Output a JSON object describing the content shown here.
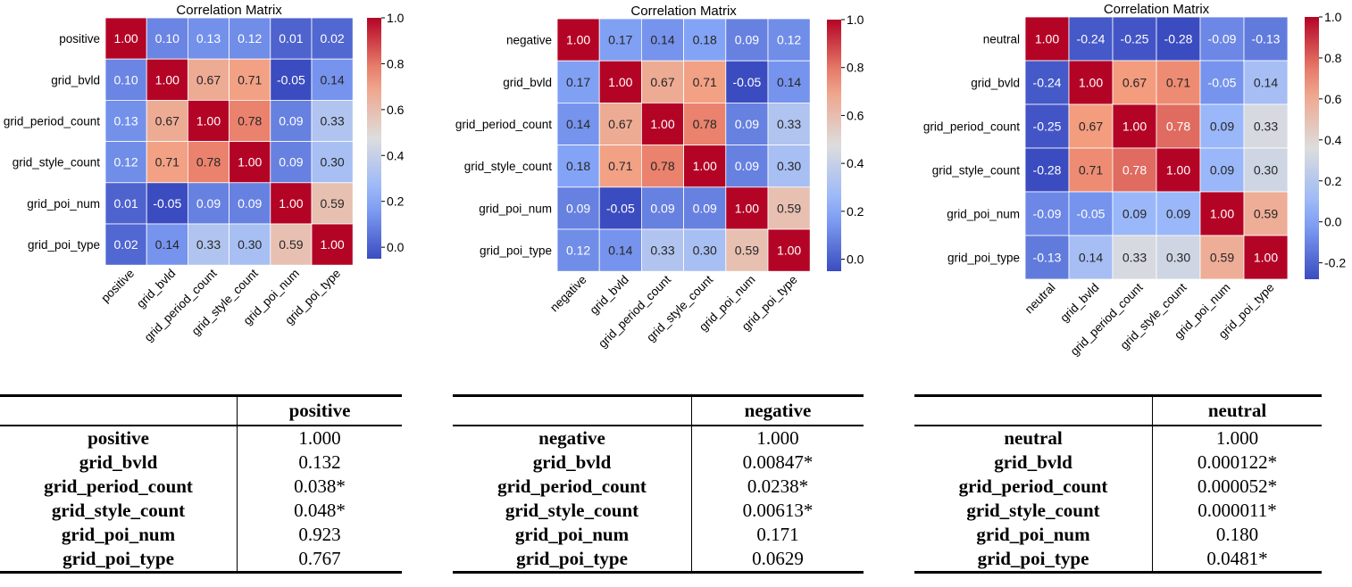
{
  "chart_data": [
    {
      "type": "heatmap",
      "title": "Correlation Matrix",
      "labels": [
        "positive",
        "grid_bvld",
        "grid_period_count",
        "grid_style_count",
        "grid_poi_num",
        "grid_poi_type"
      ],
      "matrix": [
        [
          1.0,
          0.1,
          0.13,
          0.12,
          0.01,
          0.02
        ],
        [
          0.1,
          1.0,
          0.67,
          0.71,
          -0.05,
          0.14
        ],
        [
          0.13,
          0.67,
          1.0,
          0.78,
          0.09,
          0.33
        ],
        [
          0.12,
          0.71,
          0.78,
          1.0,
          0.09,
          0.3
        ],
        [
          0.01,
          -0.05,
          0.09,
          0.09,
          1.0,
          0.59
        ],
        [
          0.02,
          0.14,
          0.33,
          0.3,
          0.59,
          1.0
        ]
      ],
      "vmin": -0.05,
      "vmax": 1.0,
      "colorbar_ticks": [
        "1.0",
        "0.8",
        "0.6",
        "0.4",
        "0.2",
        "0.0"
      ],
      "colormap": "coolwarm"
    },
    {
      "type": "heatmap",
      "title": "Correlation Matrix",
      "labels": [
        "negative",
        "grid_bvld",
        "grid_period_count",
        "grid_style_count",
        "grid_poi_num",
        "grid_poi_type"
      ],
      "matrix": [
        [
          1.0,
          0.17,
          0.14,
          0.18,
          0.09,
          0.12
        ],
        [
          0.17,
          1.0,
          0.67,
          0.71,
          -0.05,
          0.14
        ],
        [
          0.14,
          0.67,
          1.0,
          0.78,
          0.09,
          0.33
        ],
        [
          0.18,
          0.71,
          0.78,
          1.0,
          0.09,
          0.3
        ],
        [
          0.09,
          -0.05,
          0.09,
          0.09,
          1.0,
          0.59
        ],
        [
          0.12,
          0.14,
          0.33,
          0.3,
          0.59,
          1.0
        ]
      ],
      "vmin": -0.05,
      "vmax": 1.0,
      "colorbar_ticks": [
        "1.0",
        "0.8",
        "0.6",
        "0.4",
        "0.2",
        "0.0"
      ],
      "colormap": "coolwarm"
    },
    {
      "type": "heatmap",
      "title": "Correlation Matrix",
      "labels": [
        "neutral",
        "grid_bvld",
        "grid_period_count",
        "grid_style_count",
        "grid_poi_num",
        "grid_poi_type"
      ],
      "matrix": [
        [
          1.0,
          -0.24,
          -0.25,
          -0.28,
          -0.09,
          -0.13
        ],
        [
          -0.24,
          1.0,
          0.67,
          0.71,
          -0.05,
          0.14
        ],
        [
          -0.25,
          0.67,
          1.0,
          0.78,
          0.09,
          0.33
        ],
        [
          -0.28,
          0.71,
          0.78,
          1.0,
          0.09,
          0.3
        ],
        [
          -0.09,
          -0.05,
          0.09,
          0.09,
          1.0,
          0.59
        ],
        [
          -0.13,
          0.14,
          0.33,
          0.3,
          0.59,
          1.0
        ]
      ],
      "vmin": -0.28,
      "vmax": 1.0,
      "colorbar_ticks": [
        "1.0",
        "0.8",
        "0.6",
        "0.4",
        "0.2",
        "0.0",
        "-0.2"
      ],
      "colormap": "coolwarm"
    }
  ],
  "tables": [
    {
      "header": "positive",
      "rows": [
        {
          "label": "positive",
          "value": "1.000"
        },
        {
          "label": "grid_bvld",
          "value": "0.132"
        },
        {
          "label": "grid_period_count",
          "value": "0.038*"
        },
        {
          "label": "grid_style_count",
          "value": "0.048*"
        },
        {
          "label": "grid_poi_num",
          "value": "0.923"
        },
        {
          "label": "grid_poi_type",
          "value": "0.767"
        }
      ]
    },
    {
      "header": "negative",
      "rows": [
        {
          "label": "negative",
          "value": "1.000"
        },
        {
          "label": "grid_bvld",
          "value": "0.00847*"
        },
        {
          "label": "grid_period_count",
          "value": "0.0238*"
        },
        {
          "label": "grid_style_count",
          "value": "0.00613*"
        },
        {
          "label": "grid_poi_num",
          "value": "0.171"
        },
        {
          "label": "grid_poi_type",
          "value": "0.0629"
        }
      ]
    },
    {
      "header": "neutral",
      "rows": [
        {
          "label": "neutral",
          "value": "1.000"
        },
        {
          "label": "grid_bvld",
          "value": "0.000122*"
        },
        {
          "label": "grid_period_count",
          "value": "0.000052*"
        },
        {
          "label": "grid_style_count",
          "value": "0.000011*"
        },
        {
          "label": "grid_poi_num",
          "value": "0.180"
        },
        {
          "label": "grid_poi_type",
          "value": "0.0481*"
        }
      ]
    }
  ]
}
